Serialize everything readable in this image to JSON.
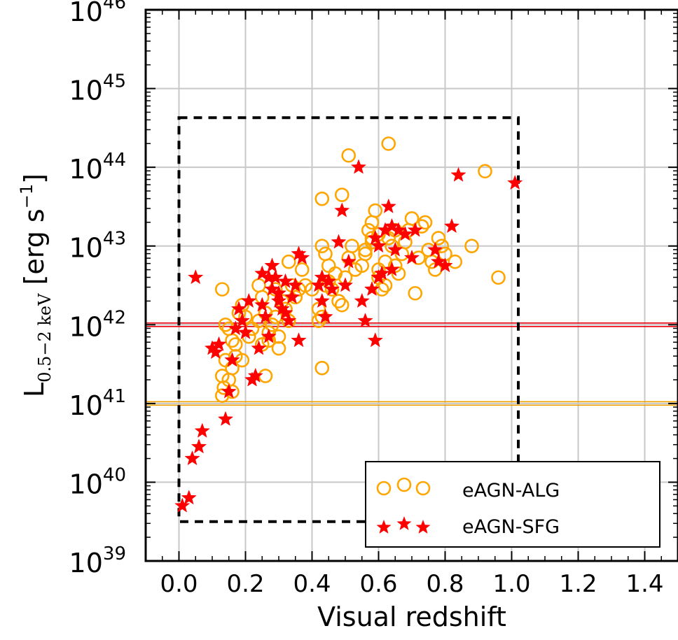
{
  "chart_data": {
    "type": "scatter",
    "title": "",
    "xlabel": "Visual redshift",
    "ylabel": {
      "base": "L",
      "subscript": "0.5−2 keV",
      "unit_prefix": " [erg s",
      "unit_sup": "−1",
      "unit_suffix": "]"
    },
    "xlim": [
      -0.1,
      1.5
    ],
    "ylim_log10": [
      39,
      46
    ],
    "y_scale": "log",
    "grid": true,
    "legend_position": "lower-right",
    "x_ticks": [
      "0.0",
      "0.2",
      "0.4",
      "0.6",
      "0.8",
      "1.0",
      "1.2",
      "1.4"
    ],
    "x_tick_values": [
      0.0,
      0.2,
      0.4,
      0.6,
      0.8,
      1.0,
      1.2,
      1.4
    ],
    "y_ticks": [
      {
        "base": "10",
        "exp": "39",
        "log": 39
      },
      {
        "base": "10",
        "exp": "40",
        "log": 40
      },
      {
        "base": "10",
        "exp": "41",
        "log": 41
      },
      {
        "base": "10",
        "exp": "42",
        "log": 42
      },
      {
        "base": "10",
        "exp": "43",
        "log": 43
      },
      {
        "base": "10",
        "exp": "44",
        "log": 44
      },
      {
        "base": "10",
        "exp": "45",
        "log": 45
      },
      {
        "base": "10",
        "exp": "46",
        "log": 46
      }
    ],
    "reference_lines": [
      {
        "log_y": 42.0,
        "color": "#e8000b"
      },
      {
        "log_y": 41.0,
        "color": "#f0a000"
      }
    ],
    "selection_box": {
      "x": [
        0.0,
        1.02
      ],
      "log_y": [
        39.5,
        44.63
      ]
    },
    "colors": {
      "alg": "#ffa500",
      "sfg": "#ff0000",
      "grid": "#c8c8c8"
    },
    "series": [
      {
        "name": "eAGN-ALG",
        "marker": "open-circle",
        "points": [
          [
            0.13,
            42.45
          ],
          [
            0.14,
            42.0
          ],
          [
            0.15,
            41.95
          ],
          [
            0.16,
            41.8
          ],
          [
            0.17,
            41.75
          ],
          [
            0.18,
            42.15
          ],
          [
            0.19,
            42.25
          ],
          [
            0.2,
            42.1
          ],
          [
            0.21,
            41.85
          ],
          [
            0.17,
            41.6
          ],
          [
            0.16,
            41.45
          ],
          [
            0.15,
            41.3
          ],
          [
            0.14,
            41.55
          ],
          [
            0.13,
            41.35
          ],
          [
            0.135,
            41.2
          ],
          [
            0.16,
            41.15
          ],
          [
            0.19,
            41.55
          ],
          [
            0.13,
            41.1
          ],
          [
            0.22,
            41.95
          ],
          [
            0.24,
            42.05
          ],
          [
            0.25,
            41.75
          ],
          [
            0.26,
            42.15
          ],
          [
            0.27,
            41.9
          ],
          [
            0.28,
            42.0
          ],
          [
            0.29,
            42.1
          ],
          [
            0.3,
            41.85
          ],
          [
            0.31,
            42.3
          ],
          [
            0.32,
            42.2
          ],
          [
            0.33,
            42.05
          ],
          [
            0.34,
            42.5
          ],
          [
            0.35,
            42.35
          ],
          [
            0.36,
            42.45
          ],
          [
            0.3,
            41.7
          ],
          [
            0.27,
            41.8
          ],
          [
            0.25,
            42.35
          ],
          [
            0.26,
            41.35
          ],
          [
            0.33,
            42.8
          ],
          [
            0.37,
            42.7
          ],
          [
            0.29,
            42.45
          ],
          [
            0.24,
            42.5
          ],
          [
            0.38,
            42.5
          ],
          [
            0.4,
            42.45
          ],
          [
            0.42,
            42.2
          ],
          [
            0.43,
            42.1
          ],
          [
            0.44,
            42.5
          ],
          [
            0.45,
            42.55
          ],
          [
            0.46,
            42.45
          ],
          [
            0.47,
            42.65
          ],
          [
            0.48,
            42.3
          ],
          [
            0.49,
            42.25
          ],
          [
            0.5,
            42.6
          ],
          [
            0.51,
            42.85
          ],
          [
            0.52,
            43.0
          ],
          [
            0.53,
            42.7
          ],
          [
            0.43,
            43.0
          ],
          [
            0.44,
            42.9
          ],
          [
            0.45,
            42.75
          ],
          [
            0.42,
            42.05
          ],
          [
            0.43,
            41.45
          ],
          [
            0.43,
            43.6
          ],
          [
            0.49,
            43.65
          ],
          [
            0.51,
            44.15
          ],
          [
            0.55,
            42.75
          ],
          [
            0.56,
            42.9
          ],
          [
            0.57,
            43.2
          ],
          [
            0.58,
            43.3
          ],
          [
            0.59,
            43.45
          ],
          [
            0.6,
            42.6
          ],
          [
            0.61,
            42.45
          ],
          [
            0.62,
            42.8
          ],
          [
            0.63,
            43.1
          ],
          [
            0.64,
            43.0
          ],
          [
            0.65,
            42.75
          ],
          [
            0.66,
            42.65
          ],
          [
            0.67,
            42.9
          ],
          [
            0.68,
            43.05
          ],
          [
            0.69,
            43.2
          ],
          [
            0.7,
            43.35
          ],
          [
            0.71,
            42.4
          ],
          [
            0.72,
            42.85
          ],
          [
            0.73,
            43.25
          ],
          [
            0.74,
            43.3
          ],
          [
            0.75,
            42.95
          ],
          [
            0.76,
            42.8
          ],
          [
            0.77,
            42.7
          ],
          [
            0.78,
            43.1
          ],
          [
            0.79,
            43.0
          ],
          [
            0.8,
            42.9
          ],
          [
            0.83,
            42.8
          ],
          [
            0.88,
            43.0
          ],
          [
            0.92,
            43.95
          ],
          [
            0.96,
            42.6
          ],
          [
            0.58,
            43.1
          ],
          [
            0.62,
            42.5
          ],
          [
            0.6,
            43.15
          ],
          [
            0.56,
            42.95
          ],
          [
            0.63,
            44.3
          ],
          [
            0.58,
            43.05
          ],
          [
            0.65,
            43.2
          ],
          [
            0.6,
            42.7
          ]
        ]
      },
      {
        "name": "eAGN-SFG",
        "marker": "filled-star",
        "points": [
          [
            0.01,
            39.7
          ],
          [
            0.03,
            39.8
          ],
          [
            0.04,
            40.3
          ],
          [
            0.06,
            40.45
          ],
          [
            0.07,
            40.65
          ],
          [
            0.05,
            42.6
          ],
          [
            0.1,
            41.7
          ],
          [
            0.11,
            41.65
          ],
          [
            0.12,
            41.75
          ],
          [
            0.14,
            40.8
          ],
          [
            0.15,
            41.15
          ],
          [
            0.16,
            41.55
          ],
          [
            0.17,
            41.95
          ],
          [
            0.18,
            42.2
          ],
          [
            0.19,
            42.05
          ],
          [
            0.2,
            41.9
          ],
          [
            0.21,
            42.3
          ],
          [
            0.22,
            41.3
          ],
          [
            0.23,
            41.35
          ],
          [
            0.24,
            41.7
          ],
          [
            0.25,
            42.25
          ],
          [
            0.26,
            42.1
          ],
          [
            0.27,
            41.85
          ],
          [
            0.28,
            42.45
          ],
          [
            0.29,
            42.6
          ],
          [
            0.3,
            42.3
          ],
          [
            0.31,
            42.2
          ],
          [
            0.32,
            42.15
          ],
          [
            0.33,
            42.05
          ],
          [
            0.34,
            42.35
          ],
          [
            0.35,
            42.5
          ],
          [
            0.36,
            41.8
          ],
          [
            0.37,
            42.85
          ],
          [
            0.25,
            42.65
          ],
          [
            0.27,
            42.6
          ],
          [
            0.28,
            42.75
          ],
          [
            0.3,
            42.4
          ],
          [
            0.32,
            42.55
          ],
          [
            0.42,
            42.5
          ],
          [
            0.43,
            42.3
          ],
          [
            0.44,
            42.1
          ],
          [
            0.45,
            42.55
          ],
          [
            0.46,
            42.45
          ],
          [
            0.48,
            43.05
          ],
          [
            0.49,
            43.45
          ],
          [
            0.5,
            42.5
          ],
          [
            0.51,
            42.8
          ],
          [
            0.54,
            44.0
          ],
          [
            0.55,
            42.3
          ],
          [
            0.56,
            42.05
          ],
          [
            0.59,
            41.8
          ],
          [
            0.58,
            42.45
          ],
          [
            0.6,
            42.6
          ],
          [
            0.61,
            42.65
          ],
          [
            0.62,
            43.2
          ],
          [
            0.63,
            43.5
          ],
          [
            0.64,
            43.25
          ],
          [
            0.65,
            42.95
          ],
          [
            0.66,
            43.2
          ],
          [
            0.68,
            43.15
          ],
          [
            0.7,
            42.85
          ],
          [
            0.71,
            43.2
          ],
          [
            0.77,
            42.95
          ],
          [
            0.78,
            42.8
          ],
          [
            0.8,
            42.75
          ],
          [
            0.82,
            43.25
          ],
          [
            0.84,
            43.9
          ],
          [
            1.01,
            43.8
          ],
          [
            0.36,
            42.9
          ],
          [
            0.43,
            42.6
          ],
          [
            0.6,
            43.0
          ],
          [
            0.64,
            42.7
          ],
          [
            0.59,
            43.1
          ]
        ]
      }
    ]
  }
}
